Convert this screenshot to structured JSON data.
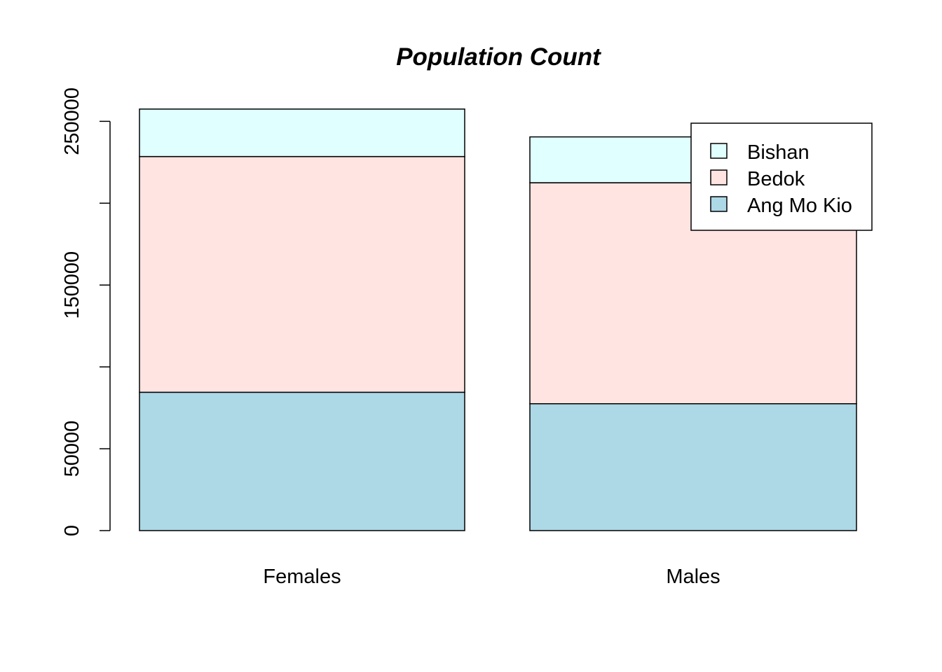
{
  "chart_data": {
    "type": "bar",
    "stacked": true,
    "title": "Population Count",
    "xlabel": "",
    "ylabel": "",
    "categories": [
      "Females",
      "Males"
    ],
    "series": [
      {
        "name": "Ang Mo Kio",
        "color": "#ADD8E6",
        "values": [
          84500,
          77500
        ]
      },
      {
        "name": "Bedok",
        "color": "#FFE4E1",
        "values": [
          144000,
          135000
        ]
      },
      {
        "name": "Bishan",
        "color": "#E0FFFF",
        "values": [
          29000,
          28000
        ]
      }
    ],
    "y_ticks": [
      {
        "value": 0,
        "label": "0"
      },
      {
        "value": 50000,
        "label": "50000"
      },
      {
        "value": 100000,
        "label": ""
      },
      {
        "value": 150000,
        "label": "150000"
      },
      {
        "value": 200000,
        "label": ""
      },
      {
        "value": 250000,
        "label": "250000"
      }
    ],
    "ylim": [
      0,
      250000
    ],
    "grid": false,
    "legend": {
      "position": "top-right",
      "items": [
        {
          "name": "Bishan",
          "color": "#E0FFFF"
        },
        {
          "name": "Bedok",
          "color": "#FFE4E1"
        },
        {
          "name": "Ang Mo Kio",
          "color": "#ADD8E6"
        }
      ]
    }
  }
}
